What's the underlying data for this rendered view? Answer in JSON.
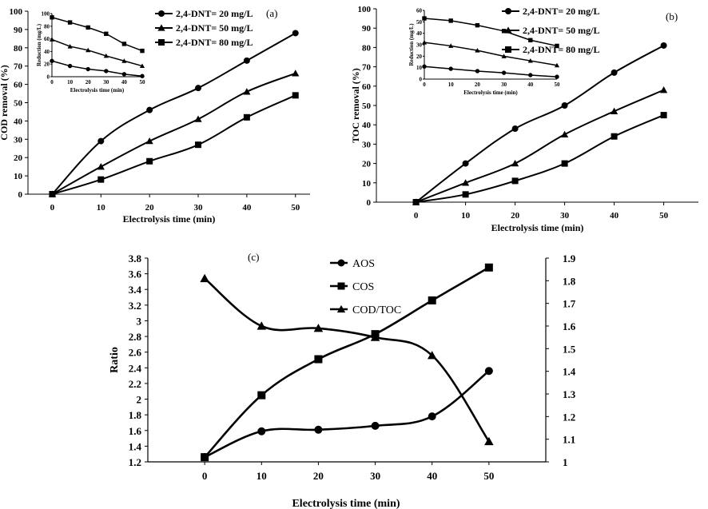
{
  "chart_data": [
    {
      "panel_label": "(a)",
      "type": "line",
      "x": [
        0,
        10,
        20,
        30,
        40,
        50
      ],
      "xlabel": "Electrolysis time (min)",
      "ylabel": "COD removal (%)",
      "ylim": [
        0,
        100
      ],
      "yticks": [
        0,
        10,
        20,
        30,
        40,
        50,
        60,
        70,
        80,
        90,
        100
      ],
      "xticks": [
        0,
        10,
        20,
        30,
        40,
        50
      ],
      "legend_position": "top-center",
      "series": [
        {
          "name": "2,4-DNT= 20 mg/L",
          "marker": "circle",
          "values": [
            0,
            29,
            46,
            58,
            73,
            88
          ]
        },
        {
          "name": "2,4-DNT= 50 mg/L",
          "marker": "triangle",
          "values": [
            0,
            15,
            29,
            41,
            56,
            66
          ]
        },
        {
          "name": "2,4-DNT= 80 mg/L",
          "marker": "square",
          "values": [
            0,
            8,
            18,
            27,
            42,
            54
          ]
        }
      ],
      "inset": {
        "type": "line",
        "x": [
          0,
          10,
          20,
          30,
          40,
          50
        ],
        "xlabel": "Electrolysis time (min)",
        "ylabel": "Reduction (mg/L)",
        "ylim": [
          0,
          100
        ],
        "yticks": [
          0,
          20,
          40,
          60,
          80,
          100
        ],
        "xticks": [
          0,
          10,
          20,
          30,
          40,
          50
        ],
        "series": [
          {
            "marker": "circle",
            "values": [
              25,
              17,
              12,
              9,
              4,
              1
            ]
          },
          {
            "marker": "triangle",
            "values": [
              59,
              48,
              42,
              33,
              25,
              17
            ]
          },
          {
            "marker": "square",
            "values": [
              94,
              86,
              78,
              68,
              52,
              41
            ]
          }
        ]
      }
    },
    {
      "panel_label": "(b)",
      "type": "line",
      "x": [
        0,
        10,
        20,
        30,
        40,
        50
      ],
      "xlabel": "Electrolysis time (min)",
      "ylabel": "TOC removal (%)",
      "ylim": [
        0,
        100
      ],
      "yticks": [
        0,
        10,
        20,
        30,
        40,
        50,
        60,
        70,
        80,
        90,
        100
      ],
      "xticks": [
        0,
        10,
        20,
        30,
        40,
        50
      ],
      "legend_position": "top-right",
      "series": [
        {
          "name": "2,4-DNT= 20 mg/L",
          "marker": "circle",
          "values": [
            0,
            20,
            38,
            50,
            67,
            81
          ]
        },
        {
          "name": "2,4-DNT= 50 mg/L",
          "marker": "triangle",
          "values": [
            0,
            10,
            20,
            35,
            47,
            58
          ]
        },
        {
          "name": "2,4-DNT= 80 mg/L",
          "marker": "square",
          "values": [
            0,
            4,
            11,
            20,
            34,
            45
          ]
        }
      ],
      "inset": {
        "type": "line",
        "x": [
          0,
          10,
          20,
          30,
          40,
          50
        ],
        "xlabel": "Electrolysis time (min)",
        "ylabel": "Reduction (mg/L)",
        "ylim": [
          0,
          60
        ],
        "yticks": [
          0,
          10,
          20,
          30,
          40,
          50,
          60
        ],
        "xticks": [
          0,
          10,
          20,
          30,
          40,
          50
        ],
        "series": [
          {
            "marker": "circle",
            "values": [
              11,
              9,
              7,
              5.5,
              3.5,
              2
            ]
          },
          {
            "marker": "triangle",
            "values": [
              32,
              29,
              25,
              20,
              16,
              12
            ]
          },
          {
            "marker": "square",
            "values": [
              53,
              51,
              47,
              42,
              34,
              29
            ]
          }
        ]
      }
    },
    {
      "panel_label": "(c)",
      "type": "line",
      "x": [
        0,
        10,
        20,
        30,
        40,
        50
      ],
      "xlabel": "Electrolysis time (min)",
      "ylabel": "Ratio",
      "ylim": [
        1.2,
        3.8
      ],
      "yticks": [
        "1.2",
        "1.4",
        "1.6",
        "1.8",
        "2",
        "2.2",
        "2.4",
        "2.6",
        "2.8",
        "3",
        "3.2",
        "3.4",
        "3.6",
        "3.8"
      ],
      "y2lim": [
        1,
        1.9
      ],
      "y2ticks": [
        "1",
        "1.1",
        "1.2",
        "1.3",
        "1.4",
        "1.5",
        "1.6",
        "1.7",
        "1.8",
        "1.9"
      ],
      "xticks": [
        0,
        10,
        20,
        30,
        40,
        50
      ],
      "legend_position": "top-center",
      "series": [
        {
          "name": "AOS",
          "marker": "circle",
          "axis": "left",
          "values": [
            1.26,
            1.59,
            1.61,
            1.66,
            1.78,
            2.36
          ]
        },
        {
          "name": "COS",
          "marker": "square",
          "axis": "left",
          "values": [
            1.26,
            2.05,
            2.51,
            2.83,
            3.26,
            3.68
          ]
        },
        {
          "name": "COD/TOC",
          "marker": "triangle",
          "axis": "right",
          "values": [
            1.81,
            1.6,
            1.59,
            1.55,
            1.47,
            1.09
          ]
        }
      ]
    }
  ]
}
